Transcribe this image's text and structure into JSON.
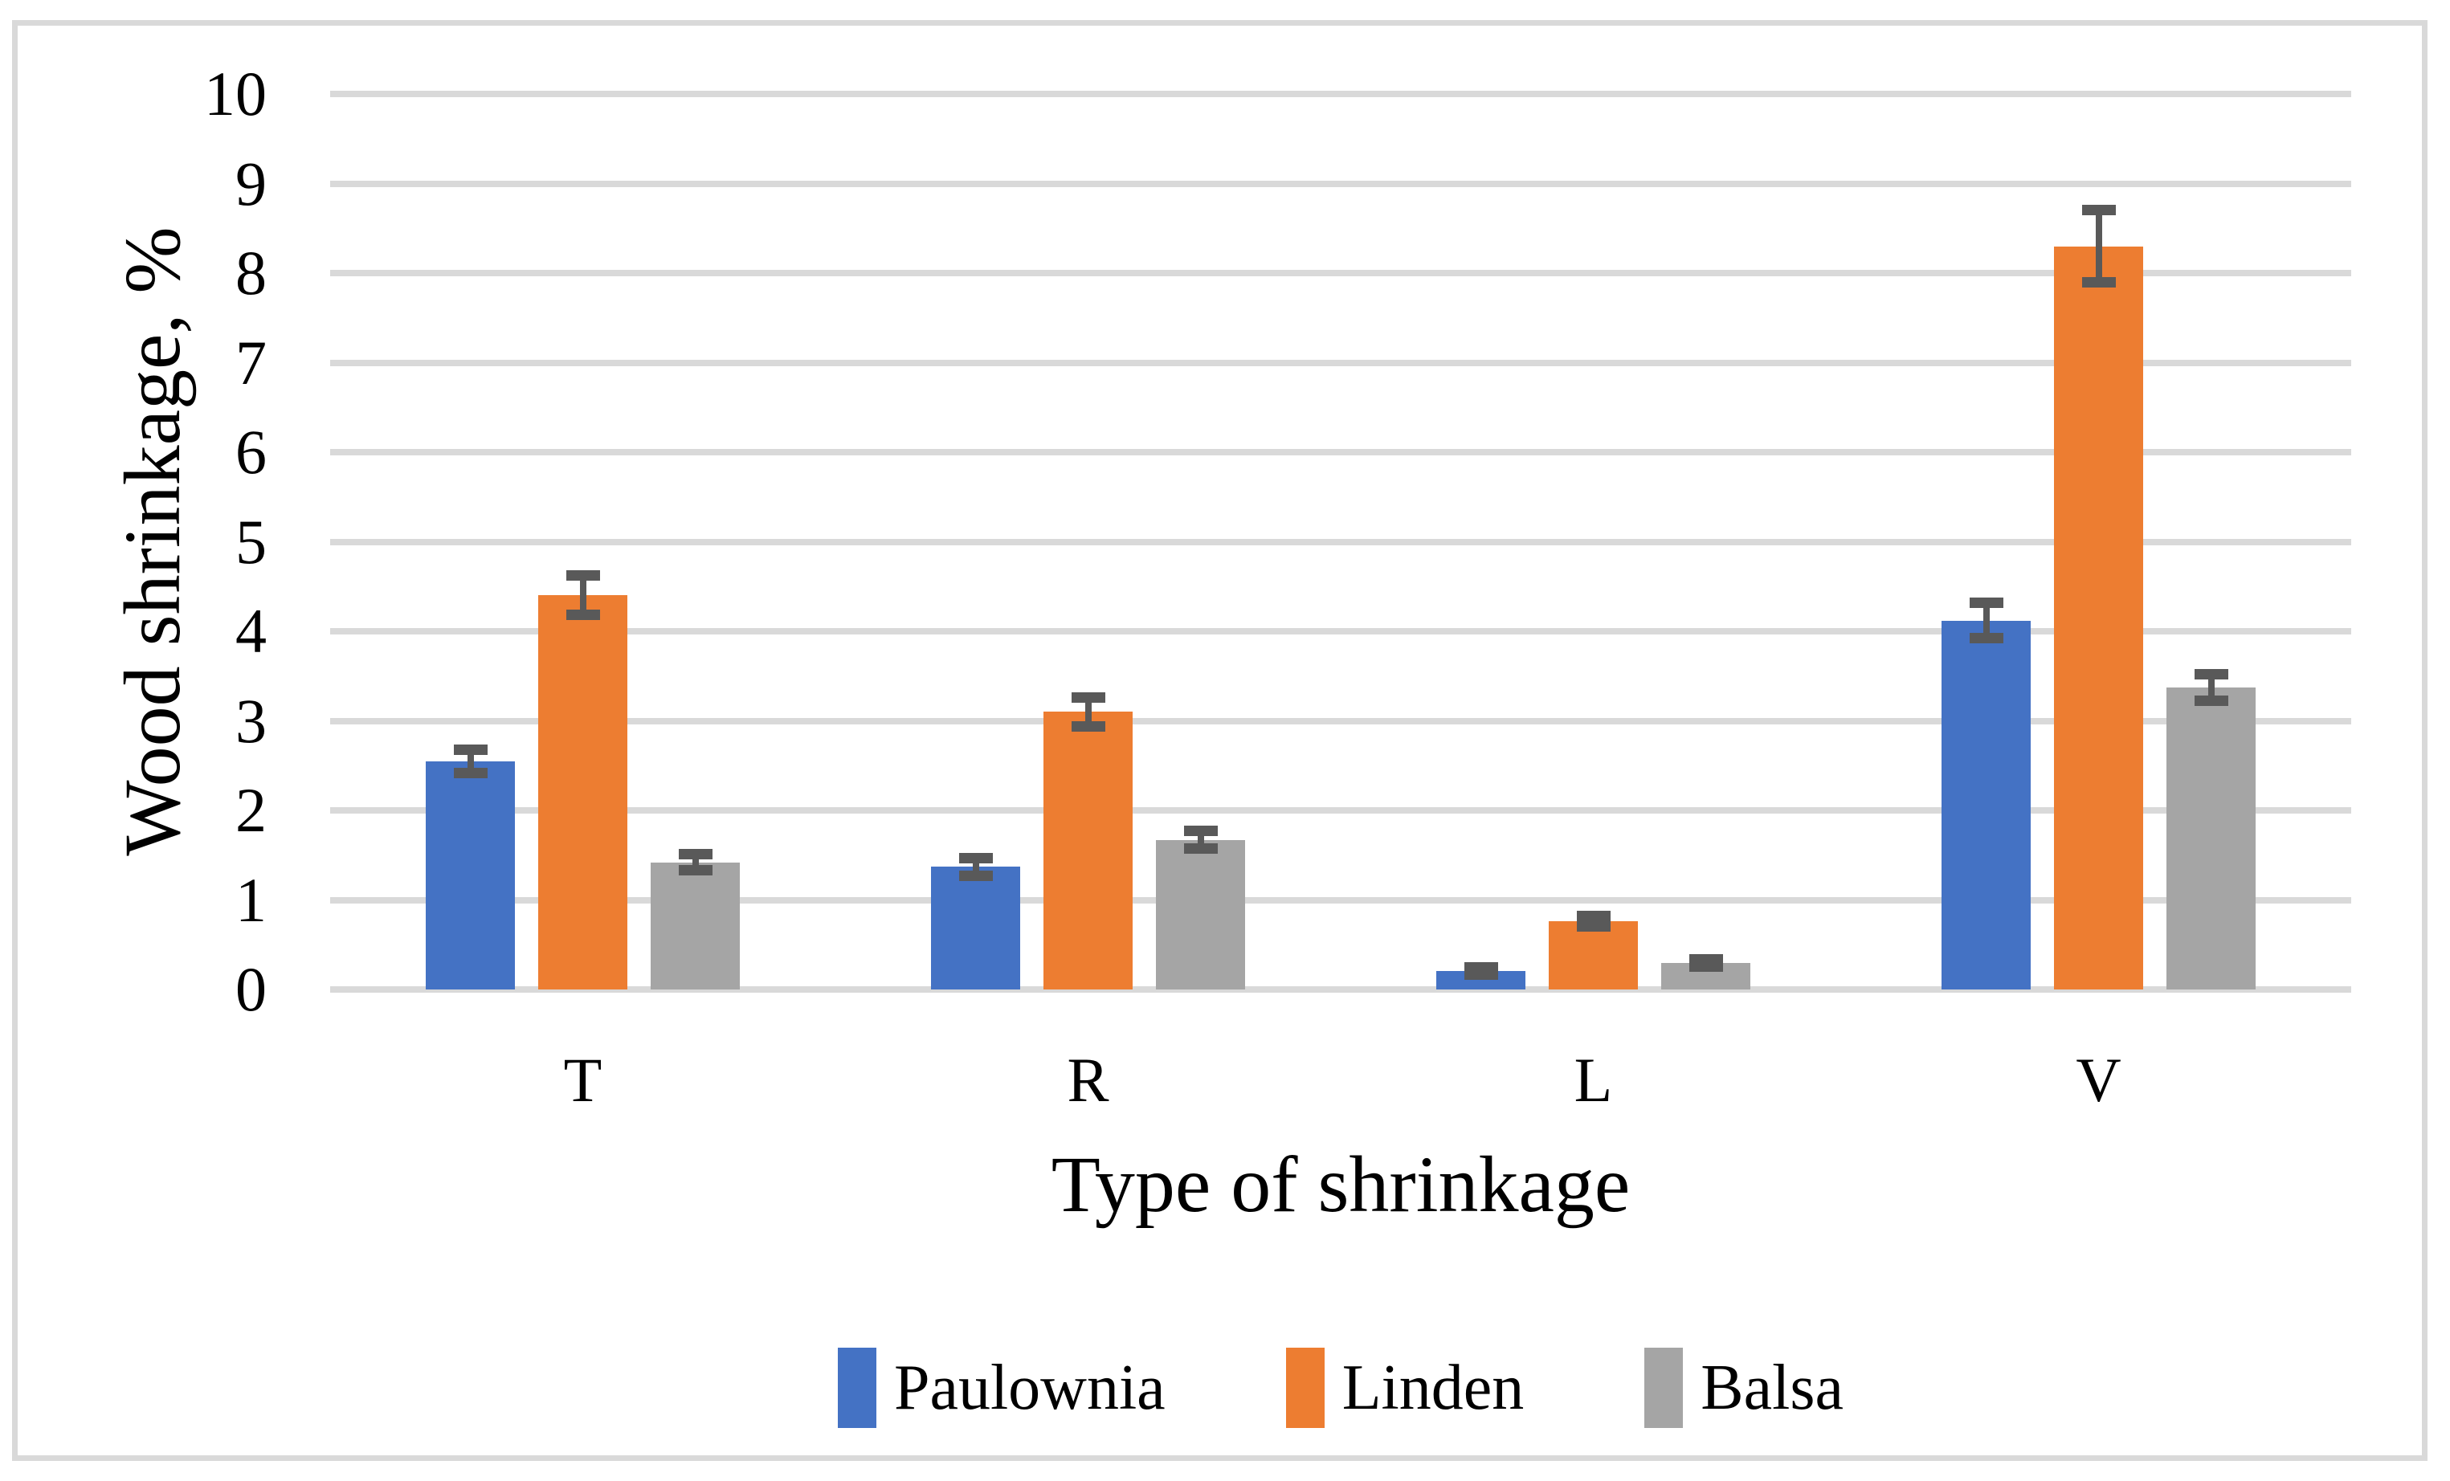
{
  "figure": {
    "background": "#FFFFFF",
    "border_color": "#D9D9D9"
  },
  "chart_data": {
    "type": "bar",
    "title": "",
    "xlabel": "Type of shrinkage",
    "ylabel": "Wood shrinkage, %",
    "categories": [
      "T",
      "R",
      "L",
      "V"
    ],
    "series": [
      {
        "name": "Paulownia",
        "color": "#4472C4",
        "values": [
          2.55,
          1.37,
          0.21,
          4.12
        ],
        "errors": [
          0.13,
          0.1,
          0.04,
          0.2
        ]
      },
      {
        "name": "Linden",
        "color": "#ED7D31",
        "values": [
          4.4,
          3.1,
          0.76,
          8.3
        ],
        "errors": [
          0.22,
          0.16,
          0.06,
          0.4
        ]
      },
      {
        "name": "Balsa",
        "color": "#A5A5A5",
        "values": [
          1.42,
          1.67,
          0.3,
          3.37
        ],
        "errors": [
          0.09,
          0.1,
          0.04,
          0.15
        ]
      }
    ],
    "ylim": [
      0,
      10
    ],
    "yticks": [
      0,
      1,
      2,
      3,
      4,
      5,
      6,
      7,
      8,
      9,
      10
    ],
    "grid": true,
    "legend_position": "bottom",
    "error_bar_color": "#595959",
    "gridline_color": "#D9D9D9"
  }
}
